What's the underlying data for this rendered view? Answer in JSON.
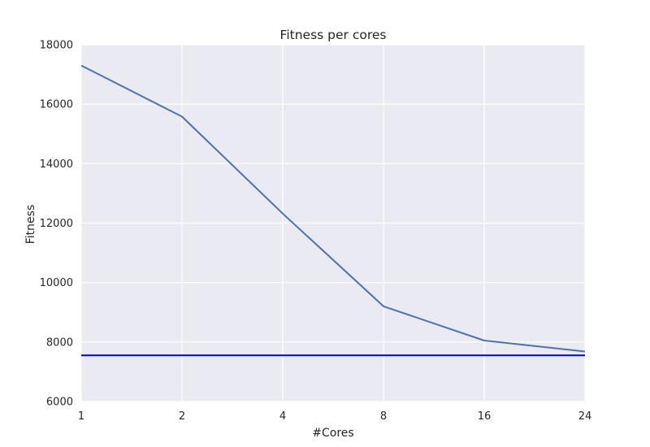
{
  "chart_data": {
    "type": "line",
    "title": "Fitness per cores",
    "xlabel": "#Cores",
    "ylabel": "Fitness",
    "categories": [
      "1",
      "2",
      "4",
      "8",
      "16",
      "24"
    ],
    "ylim": [
      6000,
      18000
    ],
    "yticks": [
      "6000",
      "8000",
      "10000",
      "12000",
      "14000",
      "16000",
      "18000"
    ],
    "grid": true,
    "series": [
      {
        "values": [
          17300,
          15580,
          12320,
          9200,
          8050,
          7680
        ],
        "color": "#4c72b0"
      }
    ],
    "reference_line": {
      "value": 7550,
      "color": "#0000cc"
    },
    "background_color": "#eaeaf2"
  }
}
